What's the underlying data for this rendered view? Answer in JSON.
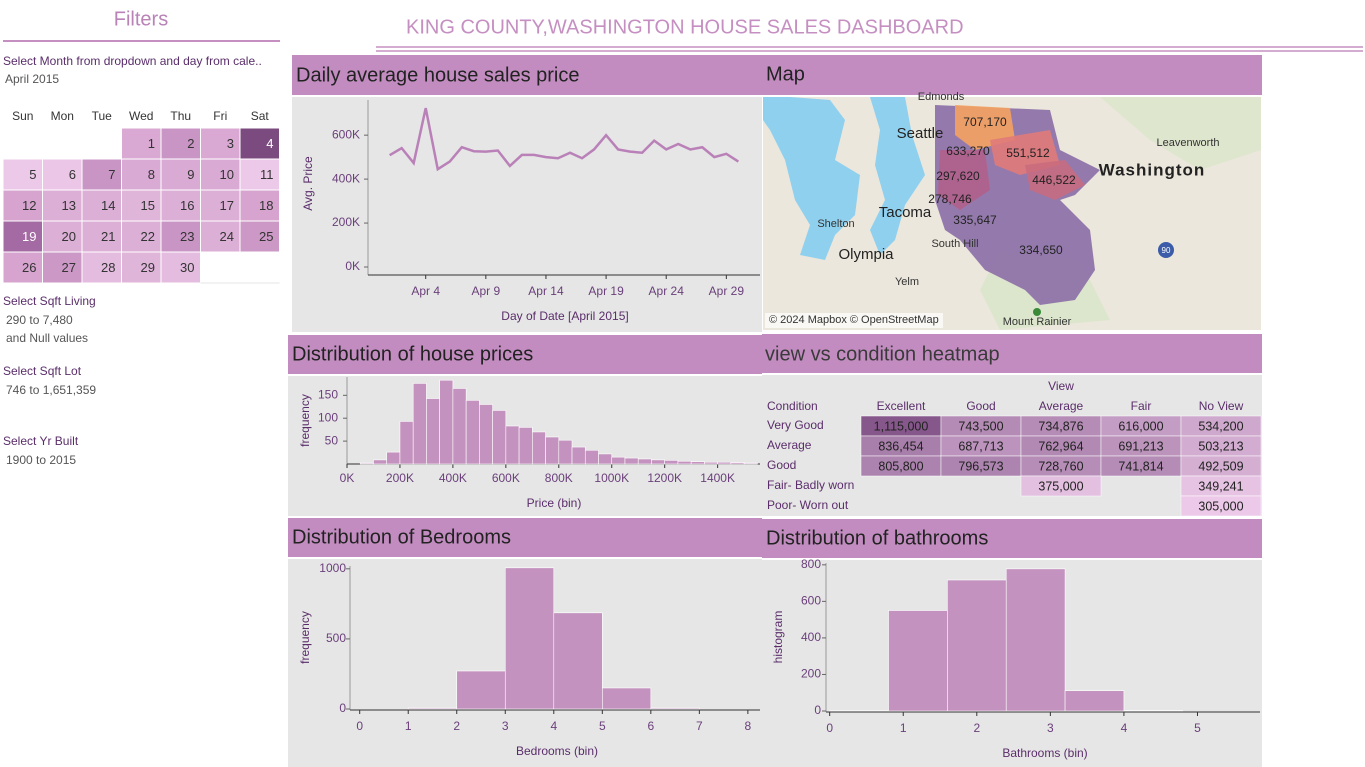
{
  "header": {
    "title": "KING COUNTY,WASHINGTON HOUSE SALES DASHBOARD"
  },
  "filters": {
    "title": "Filters",
    "month": {
      "label": "Select Month from dropdown and day from cale..",
      "value": "April 2015"
    },
    "calendar": {
      "weekdays": [
        "Sun",
        "Mon",
        "Tue",
        "Wed",
        "Thu",
        "Fri",
        "Sat"
      ],
      "weeks": [
        [
          null,
          null,
          null,
          1,
          2,
          3,
          4
        ],
        [
          5,
          6,
          7,
          8,
          9,
          10,
          11
        ],
        [
          12,
          13,
          14,
          15,
          16,
          17,
          18
        ],
        [
          19,
          20,
          21,
          22,
          23,
          24,
          25
        ],
        [
          26,
          27,
          28,
          29,
          30,
          null,
          null
        ]
      ],
      "colors": [
        [
          null,
          null,
          null,
          "#d9a9d3",
          "#c995c4",
          "#d9a9d3",
          "#7b4b80"
        ],
        [
          "#ecc9e8",
          "#ebc6e6",
          "#c995c4",
          "#d9aad4",
          "#d9aad4",
          "#d9aad4",
          "#ecc9e8"
        ],
        [
          "#d6a4cf",
          "#dcafd6",
          "#dcafd6",
          "#e0b5da",
          "#dcafd6",
          "#dcafd6",
          "#d6a4cf"
        ],
        [
          "#a46aa3",
          "#dcafd6",
          "#dcafd6",
          "#dcafd6",
          "#c995c4",
          "#dcafd6",
          "#cc99c6"
        ],
        [
          "#d6a4cf",
          "#cc99c6",
          "#e4bcdf",
          "#e0b5da",
          "#e4bcdf",
          null,
          null
        ]
      ]
    },
    "sqft_living": {
      "label": "Select Sqft Living",
      "value": "290 to 7,480",
      "note": "and Null values"
    },
    "sqft_lot": {
      "label": "Select Sqft Lot",
      "value": "746 to 1,651,359"
    },
    "yr_built": {
      "label": "Select Yr Built",
      "value": "1900 to 2015"
    }
  },
  "map": {
    "title": "Map",
    "places": [
      "Edmonds",
      "Seattle",
      "Leavenworth",
      "Washington",
      "Shelton",
      "Tacoma",
      "South Hill",
      "Olympia",
      "Yelm",
      "Mount Rainier",
      "90"
    ],
    "price_labels": [
      "707,170",
      "633,270",
      "551,512",
      "446,522",
      "297,620",
      "278,746",
      "335,647",
      "334,650"
    ],
    "attribution": "© 2024 Mapbox © OpenStreetMap"
  },
  "chart_data": [
    {
      "type": "line",
      "title": "Daily average house sales price",
      "x_label": "Day of Date [April 2015]",
      "y_label": "Avg. Price",
      "color": "#b981b8",
      "x": [
        1,
        2,
        3,
        4,
        5,
        6,
        7,
        8,
        9,
        10,
        11,
        12,
        13,
        14,
        15,
        16,
        17,
        18,
        19,
        20,
        21,
        22,
        23,
        24,
        25,
        26,
        27,
        28,
        29,
        30
      ],
      "values": [
        509000,
        541000,
        473000,
        723000,
        445000,
        480000,
        545000,
        527000,
        525000,
        530000,
        460000,
        510000,
        510000,
        500000,
        495000,
        520000,
        495000,
        535000,
        600000,
        535000,
        525000,
        520000,
        575000,
        535000,
        560000,
        535000,
        545000,
        500000,
        515000,
        480000
      ],
      "xlim": [
        -0.8,
        31.8
      ],
      "xticks": [
        {
          "value": 4,
          "label": "Apr 4"
        },
        {
          "value": 9,
          "label": "Apr 9"
        },
        {
          "value": 14,
          "label": "Apr 14"
        },
        {
          "value": 19,
          "label": "Apr 19"
        },
        {
          "value": 24,
          "label": "Apr 24"
        },
        {
          "value": 29,
          "label": "Apr 29"
        }
      ],
      "ylim": [
        0,
        760000
      ],
      "yticks": [
        {
          "value": 0,
          "label": "0K"
        },
        {
          "value": 200000,
          "label": "200K"
        },
        {
          "value": 400000,
          "label": "400K"
        },
        {
          "value": 600000,
          "label": "600K"
        }
      ]
    },
    {
      "type": "histogram",
      "title": "Distribution of house prices",
      "x_label": "Price (bin)",
      "y_label": "frequency",
      "color": "#c392be",
      "bins": [
        50000,
        100000,
        150000,
        200000,
        250000,
        300000,
        350000,
        400000,
        450000,
        500000,
        550000,
        600000,
        650000,
        700000,
        750000,
        800000,
        850000,
        900000,
        950000,
        1000000,
        1050000,
        1100000,
        1150000,
        1200000,
        1250000,
        1300000,
        1350000,
        1400000,
        1450000,
        1500000,
        1550000
      ],
      "values": [
        2,
        9,
        26,
        93,
        176,
        143,
        183,
        165,
        139,
        130,
        117,
        83,
        80,
        70,
        59,
        52,
        37,
        30,
        22,
        15,
        13,
        11,
        9,
        8,
        6,
        5,
        4,
        4,
        3,
        2
      ],
      "xlim": [
        0,
        1560000
      ],
      "xticks": [
        {
          "value": 0,
          "label": "0K"
        },
        {
          "value": 200000,
          "label": "200K"
        },
        {
          "value": 400000,
          "label": "400K"
        },
        {
          "value": 600000,
          "label": "600K"
        },
        {
          "value": 800000,
          "label": "800K"
        },
        {
          "value": 1000000,
          "label": "1000K"
        },
        {
          "value": 1200000,
          "label": "1200K"
        },
        {
          "value": 1400000,
          "label": "1400K"
        }
      ],
      "ylim": [
        0,
        190
      ],
      "yticks": [
        50,
        100,
        150
      ]
    },
    {
      "type": "heatmap",
      "title": "view vs  condition heatmap",
      "x_label": "View",
      "y_label": "Condition",
      "x": [
        "Excellent",
        "Good",
        "Average",
        "Fair",
        "No View"
      ],
      "y": [
        "Very Good",
        "Average",
        "Good",
        "Fair- Badly worn",
        "Poor- Worn out"
      ],
      "values": [
        [
          1115000,
          743500,
          734876,
          616000,
          534200
        ],
        [
          836454,
          687713,
          762964,
          691213,
          503213
        ],
        [
          805800,
          796573,
          728760,
          741814,
          492509
        ],
        [
          null,
          null,
          375000,
          null,
          349241
        ],
        [
          null,
          null,
          null,
          null,
          305000
        ]
      ],
      "value_labels": [
        [
          "1,115,000",
          "743,500",
          "734,876",
          "616,000",
          "534,200"
        ],
        [
          "836,454",
          "687,713",
          "762,964",
          "691,213",
          "503,213"
        ],
        [
          "805,800",
          "796,573",
          "728,760",
          "741,814",
          "492,509"
        ],
        [
          null,
          null,
          "375,000",
          null,
          "349,241"
        ],
        [
          null,
          null,
          null,
          null,
          "305,000"
        ]
      ],
      "color_range": [
        "#ecc9e8",
        "#85578a"
      ]
    },
    {
      "type": "histogram",
      "title": "Distribution of Bedrooms",
      "x_label": "Bedrooms (bin)",
      "y_label": "frequency",
      "color": "#c392be",
      "bins": [
        0,
        1,
        2,
        3,
        4,
        5,
        6,
        7,
        8
      ],
      "values": [
        0,
        7,
        271,
        1007,
        686,
        150,
        7,
        0
      ],
      "xlim": [
        -0.2,
        8.25
      ],
      "xticks": [
        0,
        1,
        2,
        3,
        4,
        5,
        6,
        7,
        8
      ],
      "ylim": [
        0,
        1020
      ],
      "yticks": [
        0,
        500,
        1000
      ]
    },
    {
      "type": "histogram",
      "title": "Distribution of bathrooms",
      "x_label": "Bathrooms (bin)",
      "y_label": "histogram",
      "color": "#c392be",
      "bins": [
        0,
        0.8,
        1.6,
        2.4,
        3.2,
        4,
        4.8,
        5.6
      ],
      "values": [
        2,
        550,
        717,
        778,
        111,
        3,
        0
      ],
      "xlim": [
        -0.05,
        5.85
      ],
      "xticks": [
        0,
        1,
        2,
        3,
        4,
        5
      ],
      "ylim": [
        0,
        810
      ],
      "yticks": [
        0,
        200,
        400,
        600,
        800
      ]
    }
  ]
}
